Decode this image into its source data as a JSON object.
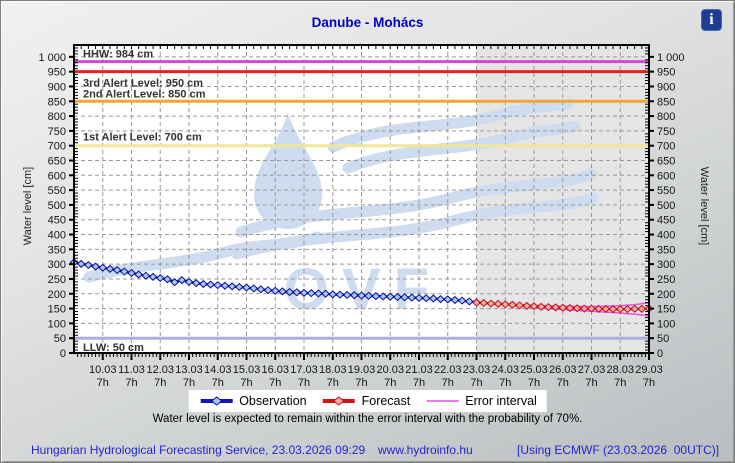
{
  "header": {
    "title": "Danube - Mohács",
    "info_icon_glyph": "i"
  },
  "chart_data": {
    "type": "line",
    "title": "Danube - Mohács",
    "ylabel": "Water level [cm]",
    "ylim": [
      0,
      1040
    ],
    "y_tick_step": 50,
    "x_axis_description": "daily ticks at 7h from 10.03 to 29.03; series x = days since 09.03 7h",
    "x_total_days": 20,
    "forecast_region_start_day": 14,
    "x_ticks": [
      {
        "date": "10.03",
        "hour": "7h"
      },
      {
        "date": "11.03",
        "hour": "7h"
      },
      {
        "date": "12.03",
        "hour": "7h"
      },
      {
        "date": "13.03",
        "hour": "7h"
      },
      {
        "date": "14.03",
        "hour": "7h"
      },
      {
        "date": "15.03",
        "hour": "7h"
      },
      {
        "date": "16.03",
        "hour": "7h"
      },
      {
        "date": "17.03",
        "hour": "7h"
      },
      {
        "date": "18.03",
        "hour": "7h"
      },
      {
        "date": "19.03",
        "hour": "7h"
      },
      {
        "date": "20.03",
        "hour": "7h"
      },
      {
        "date": "21.03",
        "hour": "7h"
      },
      {
        "date": "22.03",
        "hour": "7h"
      },
      {
        "date": "23.03",
        "hour": "7h"
      },
      {
        "date": "24.03",
        "hour": "7h"
      },
      {
        "date": "25.03",
        "hour": "7h"
      },
      {
        "date": "26.03",
        "hour": "7h"
      },
      {
        "date": "27.03",
        "hour": "7h"
      },
      {
        "date": "28.03",
        "hour": "7h"
      },
      {
        "date": "29.03",
        "hour": "7h"
      }
    ],
    "reference_lines": [
      {
        "id": "hhw",
        "label": "HHW: 984 cm",
        "value": 984,
        "color": "#cc4ccc",
        "label_dy": -4
      },
      {
        "id": "alert3",
        "label": "3rd Alert Level: 950 cm",
        "value": 950,
        "color": "#e22222",
        "label_dy": 15
      },
      {
        "id": "alert2",
        "label": "2nd Alert Level: 850 cm",
        "value": 850,
        "color": "#f0a638",
        "label_dy": -4
      },
      {
        "id": "alert1",
        "label": "1st Alert Level: 700 cm",
        "value": 700,
        "color": "#efe793",
        "label_dy": -5
      },
      {
        "id": "llw",
        "label": "LLW: 50 cm",
        "value": 50,
        "color": "#aeaede",
        "label_dy": 13
      }
    ],
    "series": [
      {
        "name": "Observation",
        "color": "#1515c0",
        "marker": "diamond",
        "marker_fill": "#a8c9ef",
        "marker_stroke": "#0909a0",
        "points": [
          [
            0,
            306
          ],
          [
            0.25,
            301
          ],
          [
            0.5,
            297
          ],
          [
            0.75,
            292
          ],
          [
            1,
            288
          ],
          [
            1.25,
            284
          ],
          [
            1.5,
            280
          ],
          [
            1.75,
            275
          ],
          [
            2,
            270
          ],
          [
            2.25,
            265
          ],
          [
            2.5,
            261
          ],
          [
            2.75,
            257
          ],
          [
            3,
            253
          ],
          [
            3.25,
            249
          ],
          [
            3.5,
            239
          ],
          [
            3.75,
            246
          ],
          [
            4,
            240
          ],
          [
            4.25,
            236
          ],
          [
            4.5,
            233
          ],
          [
            4.75,
            231
          ],
          [
            5,
            229
          ],
          [
            5.25,
            227
          ],
          [
            5.5,
            225
          ],
          [
            5.75,
            223
          ],
          [
            6,
            221
          ],
          [
            6.25,
            218
          ],
          [
            6.5,
            215
          ],
          [
            6.75,
            212
          ],
          [
            7,
            210
          ],
          [
            7.25,
            208
          ],
          [
            7.5,
            206
          ],
          [
            7.75,
            205
          ],
          [
            8,
            203
          ],
          [
            8.25,
            202
          ],
          [
            8.5,
            201
          ],
          [
            8.75,
            200
          ],
          [
            9,
            198
          ],
          [
            9.25,
            197
          ],
          [
            9.5,
            196
          ],
          [
            9.75,
            195
          ],
          [
            10,
            194
          ],
          [
            10.25,
            193
          ],
          [
            10.5,
            192
          ],
          [
            10.75,
            191
          ],
          [
            11,
            190
          ],
          [
            11.25,
            189
          ],
          [
            11.5,
            188
          ],
          [
            11.75,
            187
          ],
          [
            12,
            186
          ],
          [
            12.25,
            185
          ],
          [
            12.5,
            184
          ],
          [
            12.75,
            182
          ],
          [
            13,
            181
          ],
          [
            13.25,
            179
          ],
          [
            13.5,
            177
          ],
          [
            13.75,
            174
          ],
          [
            14,
            171
          ]
        ]
      },
      {
        "name": "Forecast",
        "color": "#d41414",
        "marker": "diamond",
        "marker_fill": "#f2a9a9",
        "marker_stroke": "#c01010",
        "points": [
          [
            14,
            170
          ],
          [
            14.25,
            169
          ],
          [
            14.5,
            167
          ],
          [
            14.75,
            166
          ],
          [
            15,
            164
          ],
          [
            15.25,
            163
          ],
          [
            15.5,
            161
          ],
          [
            15.75,
            159
          ],
          [
            16,
            158
          ],
          [
            16.25,
            156
          ],
          [
            16.5,
            155
          ],
          [
            16.75,
            154
          ],
          [
            17,
            153
          ],
          [
            17.25,
            152
          ],
          [
            17.5,
            151
          ],
          [
            17.75,
            150
          ],
          [
            18,
            150
          ],
          [
            18.25,
            149
          ],
          [
            18.5,
            149
          ],
          [
            18.75,
            148
          ],
          [
            19,
            148
          ],
          [
            19.25,
            148
          ],
          [
            19.5,
            149
          ],
          [
            19.75,
            149
          ],
          [
            20,
            150
          ]
        ]
      },
      {
        "name": "Error interval (upper)",
        "color": "#e44fe4",
        "marker": "none",
        "points": [
          [
            15,
            166
          ],
          [
            15.5,
            163
          ],
          [
            16,
            161
          ],
          [
            16.5,
            159
          ],
          [
            17,
            158
          ],
          [
            17.5,
            157
          ],
          [
            18,
            157
          ],
          [
            18.5,
            158
          ],
          [
            19,
            160
          ],
          [
            19.5,
            163
          ],
          [
            20,
            170
          ]
        ]
      },
      {
        "name": "Error interval (lower)",
        "color": "#e44fe4",
        "marker": "none",
        "points": [
          [
            15,
            162
          ],
          [
            15.5,
            158
          ],
          [
            16,
            154
          ],
          [
            16.5,
            150
          ],
          [
            17,
            147
          ],
          [
            17.5,
            144
          ],
          [
            18,
            141
          ],
          [
            18.5,
            138
          ],
          [
            19,
            135
          ],
          [
            19.5,
            131
          ],
          [
            20,
            126
          ]
        ]
      }
    ],
    "watermark_text": "OVF",
    "legend_position": "bottom-center",
    "grid": true
  },
  "legend": {
    "items": [
      {
        "label": "Observation"
      },
      {
        "label": "Forecast"
      },
      {
        "label": "Error interval"
      }
    ]
  },
  "note": "Water level is expected to remain within the error interval with the probability of 70%.",
  "footer": {
    "service": "Hungarian Hydrological Forecasting Service, 23.03.2026 09:29",
    "website": "www.hydroinfo.hu",
    "model_info": "[Using ECMWF (23.03.2026  00UTC)]"
  }
}
